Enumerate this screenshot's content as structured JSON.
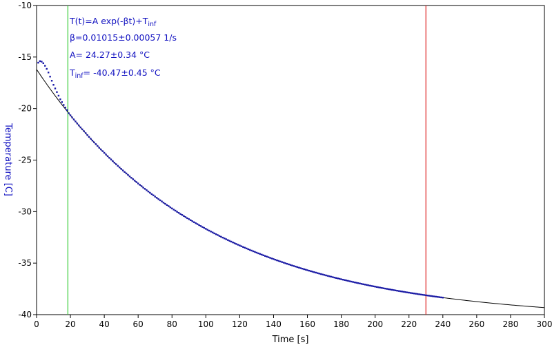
{
  "chart_data": {
    "type": "scatter",
    "title": "",
    "xlabel": "Time [s]",
    "ylabel": "Temperature [C]",
    "xlim": [
      0,
      300
    ],
    "ylim": [
      -40,
      -10
    ],
    "xticks": [
      0,
      20,
      40,
      60,
      80,
      100,
      120,
      140,
      160,
      180,
      200,
      220,
      240,
      260,
      280,
      300
    ],
    "yticks": [
      -10,
      -15,
      -20,
      -25,
      -30,
      -35,
      -40
    ],
    "grid": false,
    "legend": "none",
    "colors": {
      "data": "#1a1aa8",
      "fit": "#000000",
      "fit_start_marker": "#33cc33",
      "fit_end_marker": "#dd2222",
      "ylabel": "#1010c0",
      "annotations": "#1010c0"
    },
    "series": [
      {
        "kind": "measured",
        "x_start": 1,
        "x_end": 240,
        "x_step": 1,
        "peak_segment": {
          "x": [
            1,
            2,
            3,
            4,
            5,
            6,
            7,
            8,
            10,
            12,
            14,
            16,
            18
          ],
          "y": [
            -15.55,
            -15.4,
            -15.45,
            -15.6,
            -15.85,
            -16.15,
            -16.5,
            -16.9,
            -17.7,
            -18.4,
            -19.1,
            -19.65,
            -20.15
          ]
        },
        "follows_fit_after_x": 18
      },
      {
        "kind": "fit",
        "model": "T(t)=A exp(-βt)+T_inf",
        "A": 24.27,
        "beta": 0.01015,
        "T_inf": -40.47,
        "x_range": [
          0,
          300
        ]
      }
    ],
    "vertical_lines": [
      {
        "name": "fit-start",
        "x": 18.5
      },
      {
        "name": "fit-end",
        "x": 230
      }
    ],
    "annotations": {
      "line1_main": "T(t)=A exp(-βt)+T",
      "line1_sub": "inf",
      "line2": "β=0.01015±0.00057 1/s",
      "line3": "A= 24.27±0.34 °C",
      "line4_main": "T",
      "line4_sub": "inf",
      "line4_rest": "= -40.47±0.45 °C"
    }
  }
}
